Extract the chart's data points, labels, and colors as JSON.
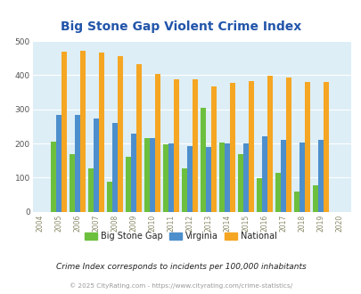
{
  "title": "Big Stone Gap Violent Crime Index",
  "years": [
    2004,
    2005,
    2006,
    2007,
    2008,
    2009,
    2010,
    2011,
    2012,
    2013,
    2014,
    2015,
    2016,
    2017,
    2018,
    2019,
    2020
  ],
  "big_stone_gap": [
    null,
    205,
    170,
    127,
    88,
    160,
    215,
    198,
    127,
    305,
    202,
    168,
    97,
    115,
    60,
    78,
    null
  ],
  "virginia": [
    null,
    285,
    284,
    272,
    260,
    228,
    215,
    200,
    192,
    190,
    201,
    200,
    220,
    211,
    202,
    210,
    null
  ],
  "national": [
    null,
    469,
    473,
    467,
    455,
    432,
    405,
    387,
    387,
    367,
    377,
    383,
    398,
    394,
    381,
    380,
    null
  ],
  "bar_colors": {
    "big_stone_gap": "#6dbf3e",
    "virginia": "#4d8fcc",
    "national": "#f5a623"
  },
  "bg_color": "#ddeef6",
  "ylabel_ticks": [
    0,
    100,
    200,
    300,
    400,
    500
  ],
  "ylim": [
    0,
    500
  ],
  "subtitle": "Crime Index corresponds to incidents per 100,000 inhabitants",
  "footer": "© 2025 CityRating.com - https://www.cityrating.com/crime-statistics/",
  "title_color": "#2255aa",
  "subtitle_color": "#222222",
  "footer_color": "#999999",
  "legend_labels": [
    "Big Stone Gap",
    "Virginia",
    "National"
  ]
}
